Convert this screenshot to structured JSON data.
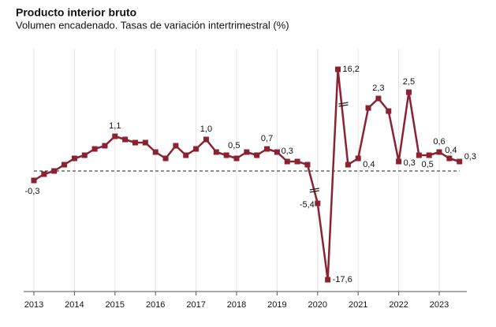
{
  "chart_data": {
    "type": "line",
    "title": "Producto interior bruto",
    "subtitle": "Volumen encadenado. Tasas de variación intertrimestral (%)",
    "categories": [
      "2013",
      null,
      null,
      null,
      "2014",
      null,
      null,
      null,
      "2015",
      null,
      null,
      null,
      "2016",
      null,
      null,
      null,
      "2017",
      null,
      null,
      null,
      "2018",
      null,
      null,
      null,
      "2019",
      null,
      null,
      null,
      "2020",
      null,
      null,
      null,
      "2021",
      null,
      null,
      null,
      "2022",
      null,
      null,
      null,
      "2023",
      null,
      null
    ],
    "series": [
      {
        "name": "PIB",
        "color": "#8b2232",
        "values": [
          -0.3,
          -0.1,
          0.0,
          0.2,
          0.4,
          0.5,
          0.7,
          0.8,
          1.1,
          1.0,
          0.9,
          0.9,
          0.6,
          0.4,
          0.8,
          0.5,
          0.7,
          1.0,
          0.6,
          0.5,
          0.4,
          0.6,
          0.5,
          0.7,
          0.6,
          0.3,
          0.3,
          0.2,
          -5.4,
          -17.6,
          16.2,
          0.2,
          0.4,
          2.0,
          2.3,
          1.9,
          0.3,
          2.5,
          0.5,
          0.5,
          0.6,
          0.4,
          0.3
        ],
        "value_labels": [
          "-0,3",
          null,
          null,
          null,
          null,
          null,
          null,
          null,
          "1,1",
          null,
          null,
          null,
          null,
          null,
          null,
          null,
          null,
          "1,0",
          null,
          "0,5",
          null,
          null,
          null,
          "0,7",
          null,
          "0,3",
          null,
          null,
          "-5,4",
          "-17,6",
          "16,2",
          null,
          "0,4",
          null,
          "2,3",
          null,
          "0,3",
          "2,5",
          null,
          "0,5",
          "0,6",
          "0,4",
          "0,3"
        ]
      }
    ],
    "zero_line": true,
    "grid": true
  }
}
